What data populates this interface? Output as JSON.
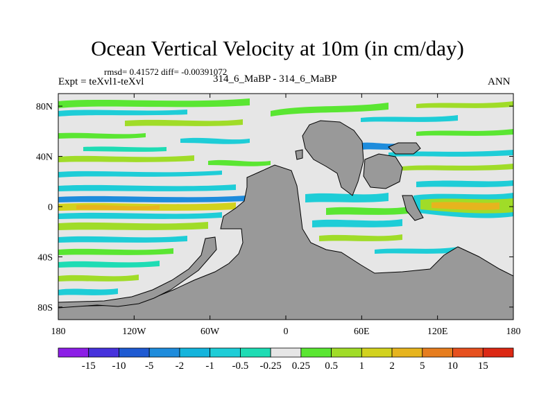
{
  "chart_data": {
    "type": "heatmap",
    "title": "Ocean Vertical Velocity at 10m (in cm/day)",
    "stats_line": "rmsd= 0.41572 diff= -0.00391072",
    "left_label": "Expt = teXvl1-teXvl",
    "center_label": "314_6_MaBP - 314_6_MaBP",
    "right_label": "ANN",
    "xlabel": "",
    "ylabel": "",
    "xlim": [
      -180,
      180
    ],
    "ylim": [
      -90,
      90
    ],
    "x_ticks": [
      {
        "value": -180,
        "label": "180"
      },
      {
        "value": -120,
        "label": "120W"
      },
      {
        "value": -60,
        "label": "60W"
      },
      {
        "value": 0,
        "label": "0"
      },
      {
        "value": 60,
        "label": "60E"
      },
      {
        "value": 120,
        "label": "120E"
      },
      {
        "value": 180,
        "label": "180"
      }
    ],
    "y_ticks": [
      {
        "value": 80,
        "label": "80N"
      },
      {
        "value": 40,
        "label": "40N"
      },
      {
        "value": 0,
        "label": "0"
      },
      {
        "value": -40,
        "label": "40S"
      },
      {
        "value": -80,
        "label": "80S"
      }
    ],
    "colorbar": {
      "labels": [
        "-15",
        "-10",
        "-5",
        "-2",
        "-1",
        "-0.5",
        "-0.25",
        "0.25",
        "0.5",
        "1",
        "2",
        "5",
        "10",
        "15"
      ],
      "colors": [
        "#8c1ee6",
        "#4632dc",
        "#1e5ad2",
        "#1e8cdc",
        "#14b4dc",
        "#1ecdd7",
        "#1edcb4",
        "#e6e6e6",
        "#5ae632",
        "#a0dc28",
        "#d2d21e",
        "#e6b41e",
        "#e67d1e",
        "#e6501e",
        "#dc2814"
      ]
    },
    "land_color": "#999999",
    "no_change_color": "#e6e6e6"
  }
}
